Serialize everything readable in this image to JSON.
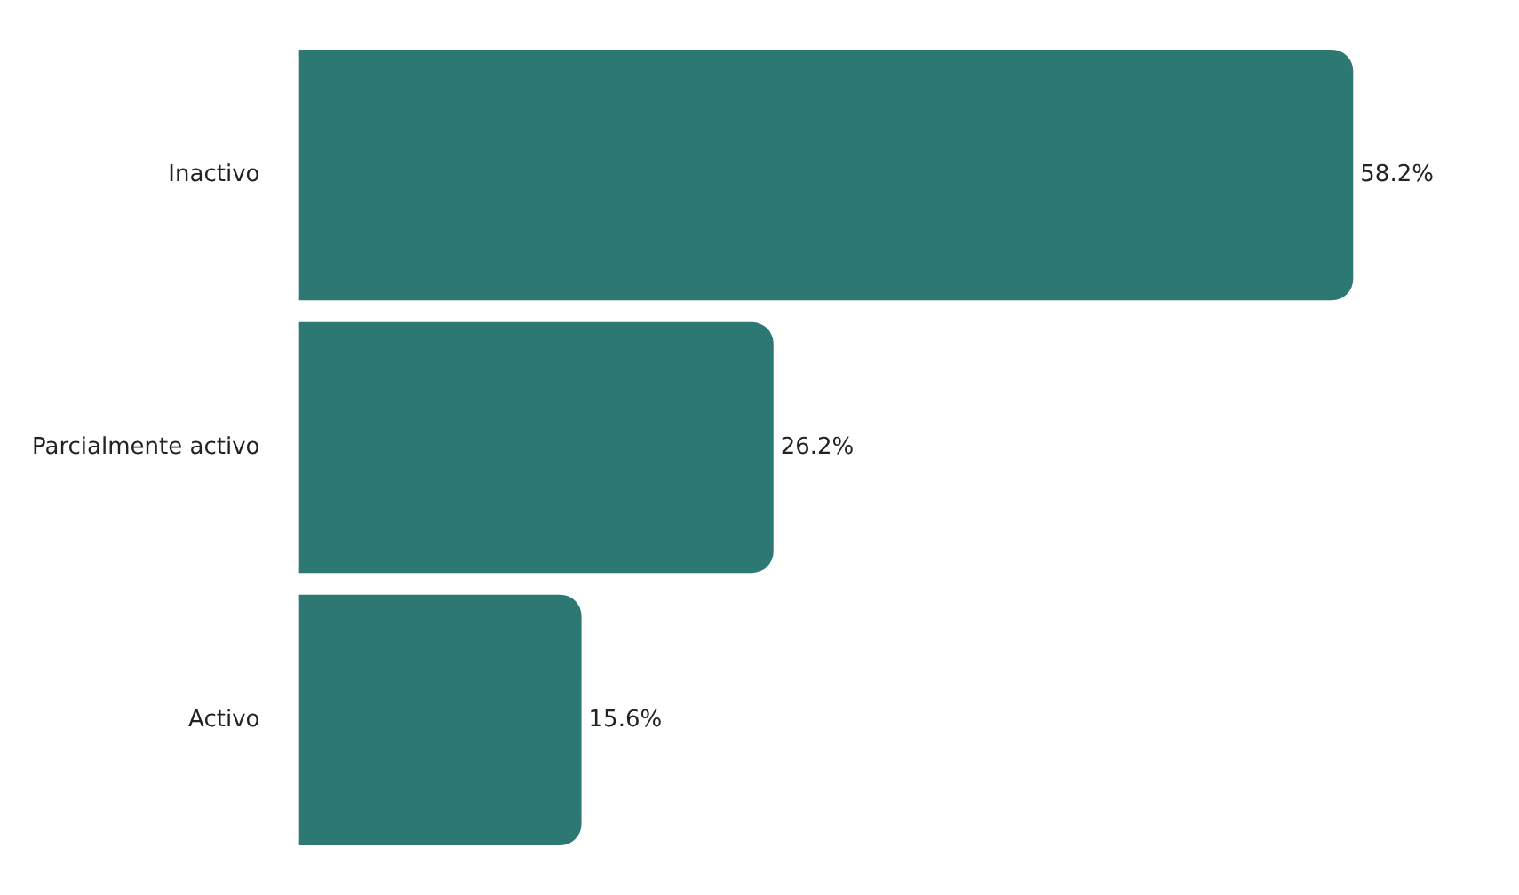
{
  "chart_data": {
    "type": "bar",
    "orientation": "horizontal",
    "categories": [
      "Inactivo",
      "Parcialmente activo",
      "Activo"
    ],
    "values": [
      58.2,
      26.2,
      15.6
    ],
    "color": "#2e7873",
    "value_labels": [
      "58.2%",
      "26.2%",
      "15.6%"
    ]
  }
}
